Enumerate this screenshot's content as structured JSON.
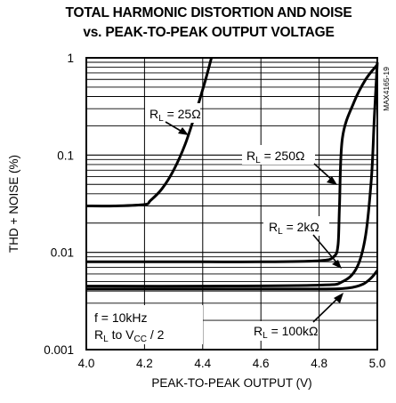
{
  "chart_data": {
    "type": "line",
    "title": "TOTAL HARMONIC DISTORTION AND NOISE",
    "subtitle": "vs. PEAK-TO-PEAK OUTPUT VOLTAGE",
    "xlabel": "PEAK-TO-PEAK OUTPUT (V)",
    "ylabel": "THD + NOISE (%)",
    "xlim": [
      4.0,
      5.0
    ],
    "ylim": [
      0.001,
      1
    ],
    "yscale": "log",
    "x_ticks": [
      "4.0",
      "4.2",
      "4.4",
      "4.6",
      "4.8",
      "5.0"
    ],
    "y_ticks": [
      "1",
      "0.1",
      "0.01",
      "0.001"
    ],
    "grid": true,
    "part_id": "MAX4165-19",
    "conditions": [
      "f = 10kHz",
      "R_L to V_CC / 2"
    ],
    "series": [
      {
        "name": "RL = 25Ω",
        "x": [
          4.0,
          4.1,
          4.2,
          4.22,
          4.26,
          4.3,
          4.34,
          4.38,
          4.41,
          4.43
        ],
        "y": [
          0.03,
          0.03,
          0.031,
          0.034,
          0.045,
          0.07,
          0.13,
          0.3,
          0.6,
          1.0
        ]
      },
      {
        "name": "RL = 250Ω",
        "x": [
          4.0,
          4.2,
          4.4,
          4.6,
          4.8,
          4.85,
          4.865,
          4.87,
          4.88,
          4.92,
          4.96,
          5.0
        ],
        "y": [
          0.008,
          0.008,
          0.008,
          0.008,
          0.0082,
          0.009,
          0.012,
          0.03,
          0.15,
          0.35,
          0.6,
          0.85
        ]
      },
      {
        "name": "RL = 2kΩ",
        "x": [
          4.0,
          4.4,
          4.8,
          4.88,
          4.93,
          4.96,
          4.98,
          4.99,
          5.0
        ],
        "y": [
          0.0045,
          0.0045,
          0.0046,
          0.005,
          0.007,
          0.015,
          0.06,
          0.25,
          0.9
        ]
      },
      {
        "name": "RL = 100kΩ",
        "x": [
          4.0,
          4.4,
          4.8,
          4.9,
          4.95,
          4.98,
          5.0
        ],
        "y": [
          0.0042,
          0.0042,
          0.0042,
          0.0043,
          0.0047,
          0.0055,
          0.0065
        ]
      }
    ]
  }
}
